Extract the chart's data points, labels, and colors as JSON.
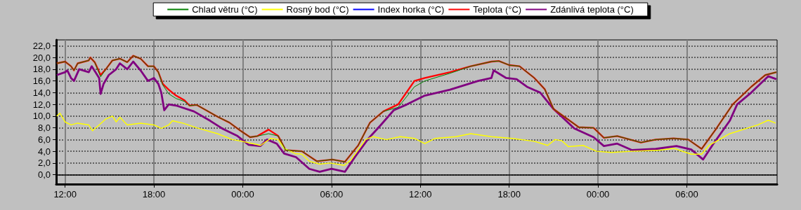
{
  "chart_data": {
    "type": "line",
    "xlim": [
      "--01-01T11:24",
      "--01-03T12:06"
    ],
    "xticks": [
      {
        "value": "--01-01T12:00",
        "label": "12:00"
      },
      {
        "value": "--01-01T18:00",
        "label": "18:00"
      },
      {
        "value": "--01-02T00:00",
        "label": "00:00"
      },
      {
        "value": "--01-02T06:00",
        "label": "06:00"
      },
      {
        "value": "--01-02T12:00",
        "label": "12:00"
      },
      {
        "value": "--01-02T18:00",
        "label": "18:00"
      },
      {
        "value": "--01-03T00:00",
        "label": "00:00"
      },
      {
        "value": "--01-03T06:00",
        "label": "06:00"
      }
    ],
    "ylim": [
      -1.6,
      23
    ],
    "yticks": [
      {
        "value": 0,
        "label": "0,0"
      },
      {
        "value": 2,
        "label": "2,0"
      },
      {
        "value": 4,
        "label": "4,0"
      },
      {
        "value": 6,
        "label": "6,0"
      },
      {
        "value": 8,
        "label": "8,0"
      },
      {
        "value": 10,
        "label": "10,0"
      },
      {
        "value": 12,
        "label": "12,0"
      },
      {
        "value": 14,
        "label": "14,0"
      },
      {
        "value": 16,
        "label": "16,0"
      },
      {
        "value": 18,
        "label": "18,0"
      },
      {
        "value": 20,
        "label": "20,0"
      },
      {
        "value": 22,
        "label": "22,0"
      }
    ],
    "grid": true,
    "legend": "top",
    "marker": "none",
    "line_style": "solid",
    "ref_lines": [
      {
        "axis": "y",
        "value": 0,
        "color": "#000000"
      }
    ],
    "series": [
      {
        "name": "Chlad větru (°C)",
        "color": "#008000",
        "x": [
          "--01-01T11:26",
          "--01-01T12:00",
          "--01-01T12:24",
          "--01-01T12:36",
          "--01-01T12:51",
          "--01-01T13:36",
          "--01-01T13:42",
          "--01-01T14:00",
          "--01-01T14:24",
          "--01-01T14:45",
          "--01-01T15:12",
          "--01-01T15:42",
          "--01-01T16:12",
          "--01-01T16:36",
          "--01-01T17:06",
          "--01-01T17:36",
          "--01-01T18:00",
          "--01-01T18:18",
          "--01-01T18:36",
          "--01-01T19:00",
          "--01-01T19:30",
          "--01-01T20:04",
          "--01-01T20:24",
          "--01-01T20:54",
          "--01-01T22:18",
          "--01-01T23:06",
          "--01-01T23:51",
          "--01-02T00:30",
          "--01-02T01:00",
          "--01-02T01:45",
          "--01-02T02:24",
          "--01-02T02:54",
          "--01-02T04:00",
          "--01-02T05:00",
          "--01-02T06:03",
          "--01-02T06:54",
          "--01-02T07:48",
          "--01-02T08:36",
          "--01-02T09:30",
          "--01-02T10:30",
          "--01-02T11:36",
          "--01-02T12:18",
          "--01-02T14:00",
          "--01-02T15:24",
          "--01-02T16:48",
          "--01-02T17:18",
          "--01-02T18:00",
          "--01-02T18:42",
          "--01-02T19:42",
          "--01-02T20:24",
          "--01-02T21:00",
          "--01-02T22:42",
          "--01-02T23:42",
          "--01-03T00:24",
          "--01-03T01:18",
          "--01-03T02:54",
          "--01-03T03:54",
          "--01-03T05:06",
          "--01-03T06:06",
          "--01-03T07:00",
          "--01-03T08:00",
          "--01-03T09:06",
          "--01-03T10:21",
          "--01-03T11:18",
          "--01-03T12:03"
        ],
        "values": [
          19.0,
          19.3,
          18.5,
          17.8,
          19.0,
          19.5,
          20.0,
          19.2,
          16.7,
          18.0,
          19.5,
          19.8,
          19.2,
          20.3,
          19.8,
          18.5,
          18.5,
          17.5,
          15.3,
          13.8,
          13.0,
          12.5,
          11.8,
          11.9,
          9.9,
          8.9,
          7.5,
          6.4,
          6.6,
          7.0,
          6.6,
          4.2,
          4.0,
          2.3,
          2.6,
          2.2,
          5.0,
          8.9,
          10.8,
          11.5,
          15.0,
          16.0,
          17.3,
          18.5,
          19.3,
          19.4,
          18.7,
          18.5,
          16.5,
          14.6,
          11.2,
          8.1,
          8.0,
          6.3,
          6.6,
          5.5,
          6.0,
          6.2,
          6.0,
          4.4,
          7.9,
          12.0,
          15.0,
          17.0,
          17.5
        ]
      },
      {
        "name": "Rosný bod (°C)",
        "color": "#ffff00",
        "x": [
          "--01-01T11:26",
          "--01-01T11:39",
          "--01-01T12:00",
          "--01-01T12:24",
          "--01-01T12:51",
          "--01-01T13:36",
          "--01-01T13:51",
          "--01-01T14:18",
          "--01-01T14:45",
          "--01-01T15:12",
          "--01-01T15:27",
          "--01-01T15:42",
          "--01-01T16:12",
          "--01-01T17:06",
          "--01-01T18:00",
          "--01-01T18:30",
          "--01-01T19:00",
          "--01-01T19:15",
          "--01-01T19:57",
          "--01-01T20:54",
          "--01-01T22:18",
          "--01-01T23:18",
          "--01-01T23:57",
          "--01-02T00:42",
          "--01-02T01:12",
          "--01-02T01:54",
          "--01-02T02:24",
          "--01-02T02:48",
          "--01-02T03:33",
          "--01-02T04:00",
          "--01-02T04:30",
          "--01-02T05:12",
          "--01-02T05:54",
          "--01-02T06:51",
          "--01-02T07:18",
          "--01-02T08:18",
          "--01-02T08:48",
          "--01-02T09:42",
          "--01-02T10:39",
          "--01-02T11:36",
          "--01-02T12:18",
          "--01-02T13:00",
          "--01-02T14:24",
          "--01-02T15:24",
          "--01-02T16:48",
          "--01-02T18:12",
          "--01-02T19:42",
          "--01-02T20:36",
          "--01-02T21:06",
          "--01-02T21:33",
          "--01-02T22:00",
          "--01-02T23:00",
          "--01-02T23:54",
          "--01-03T00:54",
          "--01-03T02:18",
          "--01-03T04:12",
          "--01-03T05:06",
          "--01-03T06:18",
          "--01-03T07:00",
          "--01-03T07:30",
          "--01-03T08:54",
          "--01-03T10:48",
          "--01-03T11:30",
          "--01-03T12:00"
        ],
        "values": [
          10.0,
          10.5,
          9.0,
          8.5,
          8.8,
          8.5,
          7.5,
          8.5,
          9.5,
          10.0,
          9.0,
          9.8,
          8.5,
          8.8,
          8.5,
          7.9,
          8.5,
          9.2,
          8.8,
          8.0,
          7.0,
          6.0,
          5.7,
          5.3,
          5.0,
          6.2,
          6.0,
          4.5,
          3.6,
          3.5,
          2.3,
          1.8,
          2.0,
          1.6,
          2.5,
          6.0,
          6.5,
          6.0,
          6.5,
          6.2,
          5.3,
          6.2,
          6.5,
          7.0,
          6.5,
          6.2,
          5.7,
          5.0,
          6.0,
          5.8,
          4.8,
          5.0,
          4.0,
          3.8,
          4.0,
          4.2,
          4.5,
          3.5,
          3.5,
          5.0,
          7.0,
          8.5,
          9.3,
          8.8
        ]
      },
      {
        "name": "Index horka (°C)",
        "color": "#0000ff"
      },
      {
        "name": "Teplota (°C)",
        "color": "#ff0000",
        "x": [
          "--01-01T11:26",
          "--01-01T12:00",
          "--01-01T12:24",
          "--01-01T12:36",
          "--01-01T12:51",
          "--01-01T13:36",
          "--01-01T13:42",
          "--01-01T14:00",
          "--01-01T14:24",
          "--01-01T14:45",
          "--01-01T15:12",
          "--01-01T15:42",
          "--01-01T16:12",
          "--01-01T16:36",
          "--01-01T17:06",
          "--01-01T17:36",
          "--01-01T18:00",
          "--01-01T18:18",
          "--01-01T18:36",
          "--01-01T19:00",
          "--01-01T19:30",
          "--01-01T20:04",
          "--01-01T20:24",
          "--01-01T20:54",
          "--01-01T22:18",
          "--01-01T23:06",
          "--01-01T23:51",
          "--01-02T00:30",
          "--01-02T01:00",
          "--01-02T01:45",
          "--01-02T02:24",
          "--01-02T02:54",
          "--01-02T04:00",
          "--01-02T05:00",
          "--01-02T06:03",
          "--01-02T06:54",
          "--01-02T07:48",
          "--01-02T08:36",
          "--01-02T09:30",
          "--01-02T10:30",
          "--01-02T11:36",
          "--01-02T12:18",
          "--01-02T14:00",
          "--01-02T15:24",
          "--01-02T16:48",
          "--01-02T17:18",
          "--01-02T18:00",
          "--01-02T18:42",
          "--01-02T19:42",
          "--01-02T20:24",
          "--01-02T21:00",
          "--01-02T22:42",
          "--01-02T23:42",
          "--01-03T00:24",
          "--01-03T01:18",
          "--01-03T02:54",
          "--01-03T03:54",
          "--01-03T05:06",
          "--01-03T06:06",
          "--01-03T07:00",
          "--01-03T08:00",
          "--01-03T09:06",
          "--01-03T10:21",
          "--01-03T11:18",
          "--01-03T12:03"
        ],
        "values": [
          19.0,
          19.3,
          18.5,
          17.8,
          19.0,
          19.5,
          20.0,
          19.2,
          17.0,
          18.0,
          19.5,
          19.8,
          19.2,
          20.3,
          19.8,
          18.5,
          18.5,
          17.5,
          15.5,
          14.5,
          13.5,
          12.7,
          11.8,
          11.9,
          9.9,
          8.9,
          7.5,
          6.4,
          6.6,
          7.7,
          6.6,
          4.2,
          4.0,
          2.3,
          2.6,
          2.2,
          5.0,
          8.9,
          10.8,
          12.0,
          16.0,
          16.5,
          17.5,
          18.5,
          19.3,
          19.4,
          18.7,
          18.5,
          16.5,
          14.6,
          11.2,
          8.1,
          8.0,
          6.3,
          6.6,
          5.5,
          6.0,
          6.2,
          6.0,
          4.4,
          7.9,
          12.0,
          15.0,
          17.0,
          17.5
        ]
      },
      {
        "name": "Zdánlivá teplota (°C)",
        "color": "#800080",
        "x": [
          "--01-01T11:26",
          "--01-01T12:00",
          "--01-01T12:09",
          "--01-01T12:24",
          "--01-01T12:36",
          "--01-01T12:57",
          "--01-01T13:36",
          "--01-01T13:48",
          "--01-01T14:03",
          "--01-01T14:18",
          "--01-01T14:24",
          "--01-01T14:36",
          "--01-01T14:57",
          "--01-01T15:27",
          "--01-01T15:42",
          "--01-01T16:12",
          "--01-01T16:36",
          "--01-01T17:06",
          "--01-01T17:36",
          "--01-01T18:00",
          "--01-01T18:18",
          "--01-01T18:30",
          "--01-01T18:42",
          "--01-01T19:00",
          "--01-01T19:30",
          "--01-01T20:42",
          "--01-01T21:48",
          "--01-01T22:36",
          "--01-01T23:39",
          "--01-02T00:24",
          "--01-02T01:12",
          "--01-02T01:39",
          "--01-02T02:18",
          "--01-02T02:48",
          "--01-02T03:36",
          "--01-02T04:30",
          "--01-02T05:12",
          "--01-02T06:00",
          "--01-02T06:54",
          "--01-02T07:36",
          "--01-02T08:30",
          "--01-02T09:18",
          "--01-02T10:12",
          "--01-02T11:06",
          "--01-02T12:18",
          "--01-02T14:00",
          "--01-02T15:54",
          "--01-02T16:48",
          "--01-02T16:57",
          "--01-02T17:48",
          "--01-02T18:30",
          "--01-02T19:12",
          "--01-02T20:06",
          "--01-02T21:00",
          "--01-02T22:24",
          "--01-02T23:42",
          "--01-03T00:24",
          "--01-03T01:18",
          "--01-03T02:18",
          "--01-03T03:54",
          "--01-03T05:18",
          "--01-03T06:18",
          "--01-03T07:06",
          "--01-03T07:48",
          "--01-03T08:54",
          "--01-03T09:24",
          "--01-03T10:21",
          "--01-03T11:30",
          "--01-03T12:03"
        ],
        "values": [
          17.0,
          17.5,
          17.8,
          16.5,
          16.0,
          18.0,
          17.5,
          18.5,
          17.5,
          16.5,
          13.8,
          15.5,
          17.0,
          18.0,
          19.0,
          18.0,
          19.3,
          17.8,
          16.0,
          16.5,
          15.5,
          14.0,
          11.0,
          12.0,
          11.8,
          10.8,
          9.2,
          7.9,
          6.6,
          5.1,
          4.9,
          6.0,
          5.3,
          3.6,
          3.0,
          1.0,
          0.5,
          1.0,
          0.5,
          3.1,
          6.2,
          8.4,
          11.0,
          12.0,
          13.5,
          14.5,
          16.0,
          16.5,
          17.8,
          16.5,
          16.3,
          15.0,
          14.0,
          11.2,
          7.9,
          6.4,
          4.9,
          5.3,
          4.2,
          4.4,
          4.9,
          4.3,
          2.6,
          5.3,
          9.2,
          12.0,
          14.0,
          16.8,
          16.3
        ]
      }
    ]
  }
}
